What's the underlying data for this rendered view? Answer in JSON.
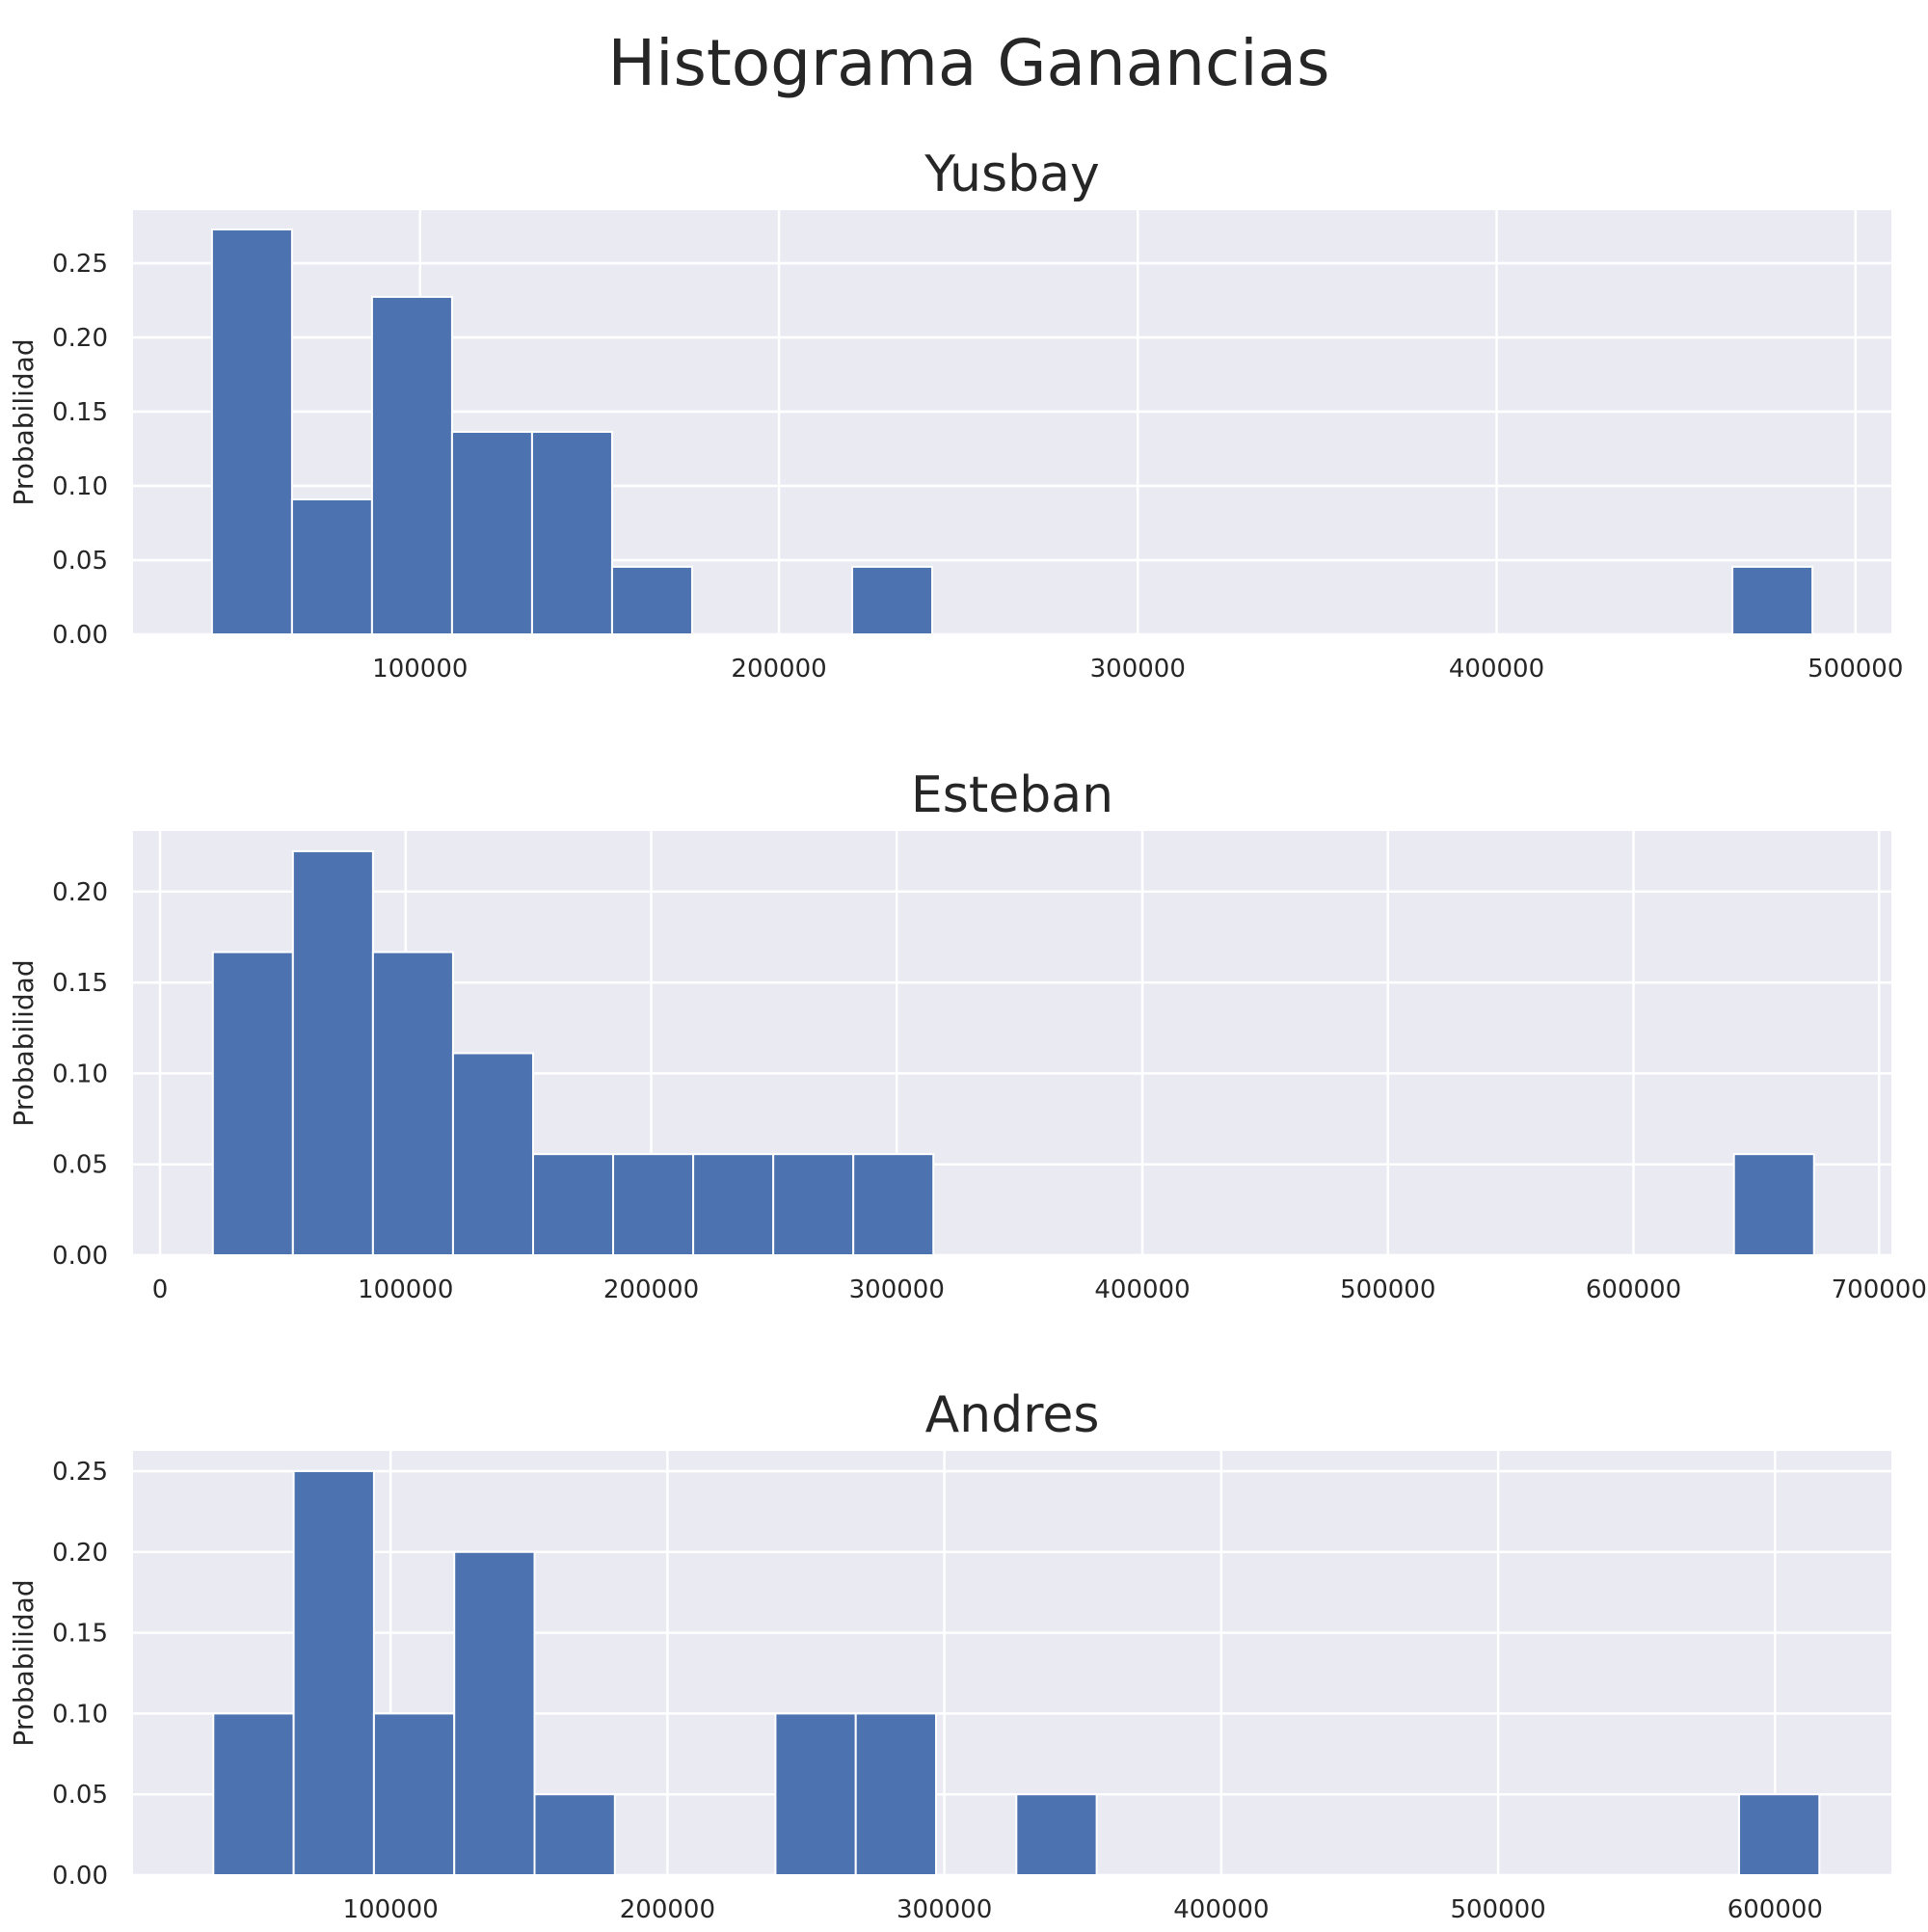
{
  "figure": {
    "title": "Histograma Ganancias"
  },
  "colors": {
    "bar": "#4c72b0",
    "panel_bg": "#eaeaf2",
    "grid": "#ffffff",
    "text": "#262626"
  },
  "chart_data": [
    {
      "type": "bar",
      "title": "Yusbay",
      "xlabel": "",
      "ylabel": "Probabilidad",
      "grid": true,
      "xlim": [
        20000,
        510000
      ],
      "ylim": [
        0,
        0.2857
      ],
      "xticks": [
        100000,
        200000,
        300000,
        400000,
        500000
      ],
      "yticks": [
        0.0,
        0.05,
        0.1,
        0.15,
        0.2,
        0.25
      ],
      "ytick_labels": [
        "0.00",
        "0.05",
        "0.10",
        "0.15",
        "0.20",
        "0.25"
      ],
      "bin_start": 42000,
      "bin_width": 22300,
      "values": [
        0.2727,
        0.0909,
        0.2273,
        0.1364,
        0.1364,
        0.0455,
        0,
        0,
        0.0455,
        0,
        0,
        0,
        0,
        0,
        0,
        0,
        0,
        0,
        0,
        0.0455
      ]
    },
    {
      "type": "bar",
      "title": "Esteban",
      "xlabel": "",
      "ylabel": "Probabilidad",
      "grid": true,
      "xlim": [
        -11000,
        705000
      ],
      "ylim": [
        0,
        0.2333
      ],
      "xticks": [
        0,
        100000,
        200000,
        300000,
        400000,
        500000,
        600000,
        700000
      ],
      "yticks": [
        0.0,
        0.05,
        0.1,
        0.15,
        0.2
      ],
      "ytick_labels": [
        "0.00",
        "0.05",
        "0.10",
        "0.15",
        "0.20"
      ],
      "bin_start": 21500,
      "bin_width": 32600,
      "values": [
        0.1667,
        0.2222,
        0.1667,
        0.1111,
        0.0556,
        0.0556,
        0.0556,
        0.0556,
        0.0556,
        0,
        0,
        0,
        0,
        0,
        0,
        0,
        0,
        0,
        0,
        0.0556
      ]
    },
    {
      "type": "bar",
      "title": "Andres",
      "xlabel": "",
      "ylabel": "Probabilidad",
      "grid": true,
      "xlim": [
        7000,
        642000
      ],
      "ylim": [
        0,
        0.2625
      ],
      "xticks": [
        100000,
        200000,
        300000,
        400000,
        500000,
        600000
      ],
      "yticks": [
        0.0,
        0.05,
        0.1,
        0.15,
        0.2,
        0.25
      ],
      "ytick_labels": [
        "0.00",
        "0.05",
        "0.10",
        "0.15",
        "0.20",
        "0.25"
      ],
      "bin_start": 36000,
      "bin_width": 29000,
      "values": [
        0.1,
        0.25,
        0.1,
        0.2,
        0.05,
        0,
        0,
        0.1,
        0.1,
        0,
        0.05,
        0,
        0,
        0,
        0,
        0,
        0,
        0,
        0,
        0.05
      ]
    }
  ]
}
